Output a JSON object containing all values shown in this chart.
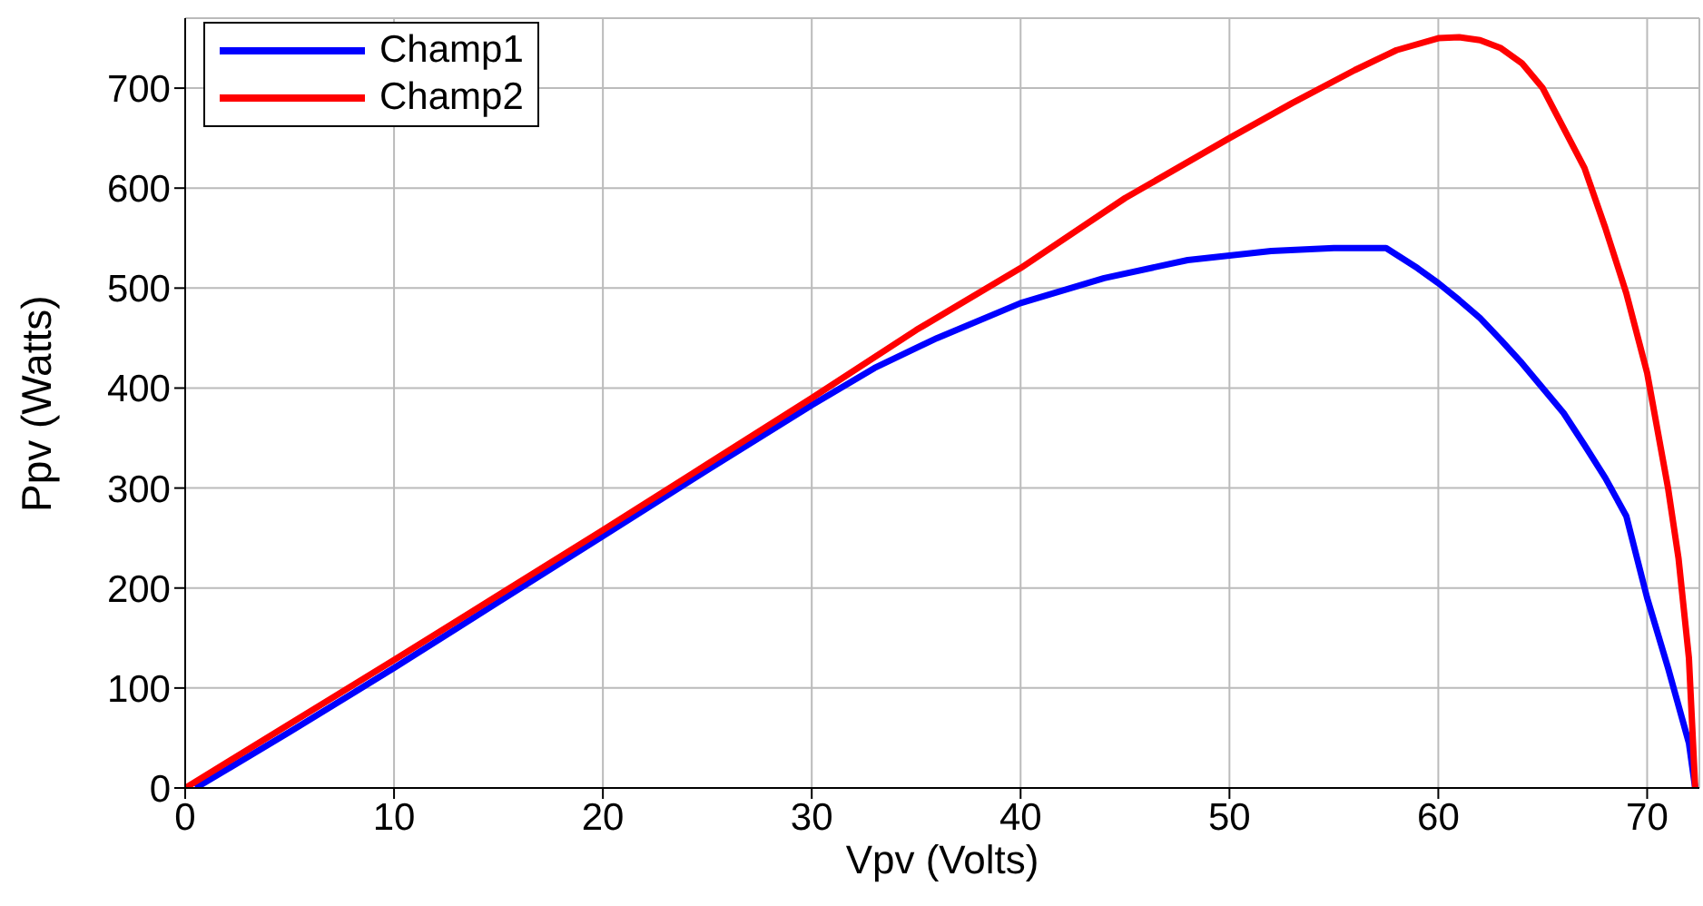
{
  "chart_data": {
    "type": "line",
    "xlabel": "Vpv (Volts)",
    "ylabel": "Ppv (Watts)",
    "xlim": [
      0,
      72.5
    ],
    "ylim": [
      0,
      770
    ],
    "xticks": [
      0,
      10,
      20,
      30,
      40,
      50,
      60,
      70
    ],
    "yticks": [
      0,
      100,
      200,
      300,
      400,
      500,
      600,
      700
    ],
    "grid": true,
    "legend": "top left",
    "marker": "none",
    "line_style": "solid",
    "series": [
      {
        "name": "Champ1",
        "color": "#0000ff",
        "x": [
          0.5,
          5,
          10,
          15,
          20,
          25,
          30,
          33,
          36,
          40,
          44,
          48,
          52,
          55,
          57.5,
          59,
          60,
          61,
          62,
          63,
          64,
          65,
          66,
          67,
          68,
          69,
          70,
          71,
          72,
          72.3
        ],
        "values": [
          0,
          56,
          120,
          186,
          252,
          318,
          383,
          420,
          450,
          485,
          510,
          528,
          537,
          540,
          540,
          520,
          505,
          488,
          470,
          448,
          425,
          400,
          375,
          343,
          310,
          272,
          190,
          120,
          45,
          0
        ]
      },
      {
        "name": "Champ2",
        "color": "#ff0000",
        "x": [
          0,
          5,
          10,
          15,
          20,
          25,
          30,
          35,
          40,
          45,
          50,
          53,
          56,
          58,
          60,
          61,
          62,
          63,
          64,
          65,
          66,
          67,
          68,
          69,
          70,
          71,
          71.5,
          72,
          72.3
        ],
        "values": [
          0,
          64,
          128,
          193,
          258,
          324,
          390,
          458,
          520,
          590,
          650,
          685,
          718,
          738,
          750,
          751,
          748,
          740,
          725,
          700,
          660,
          620,
          560,
          495,
          415,
          300,
          230,
          130,
          0
        ]
      }
    ]
  }
}
